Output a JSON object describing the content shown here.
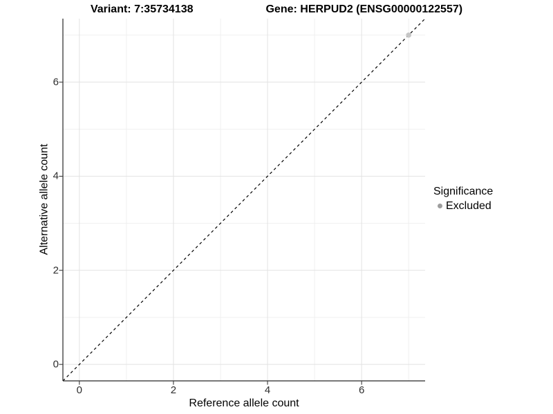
{
  "header": {
    "variant_title": "Variant: 7:35734138",
    "gene_title": "Gene: HERPUD2 (ENSG00000122557)"
  },
  "legend": {
    "title": "Significance",
    "items": [
      {
        "label": "Excluded",
        "marker_color": "#9e9e9e"
      }
    ]
  },
  "chart_data": {
    "type": "scatter",
    "title": "Variant: 7:35734138   Gene: HERPUD2 (ENSG00000122557)",
    "xlabel": "Reference allele count",
    "ylabel": "Alternative allele count",
    "xlim": [
      -0.35,
      7.35
    ],
    "ylim": [
      -0.35,
      7.35
    ],
    "x_breaks": [
      0,
      2,
      4,
      6
    ],
    "y_breaks": [
      0,
      2,
      4,
      6
    ],
    "x_minor_breaks": [
      1,
      3,
      5,
      7
    ],
    "y_minor_breaks": [
      1,
      3,
      5,
      7
    ],
    "grid": "major+minor",
    "legend_position": "right",
    "series": [
      {
        "name": "Excluded",
        "marker": "circle",
        "color": "#c6c6c6",
        "points": [
          [
            7,
            7
          ]
        ]
      }
    ],
    "reference_line": {
      "kind": "identity y=x",
      "style": "dashed",
      "color": "#000000"
    },
    "style_colors": {
      "grid_major": "#e2e2e2",
      "grid_minor": "#efefef",
      "axis_line": "#262626",
      "tick_mark": "#262626"
    }
  }
}
